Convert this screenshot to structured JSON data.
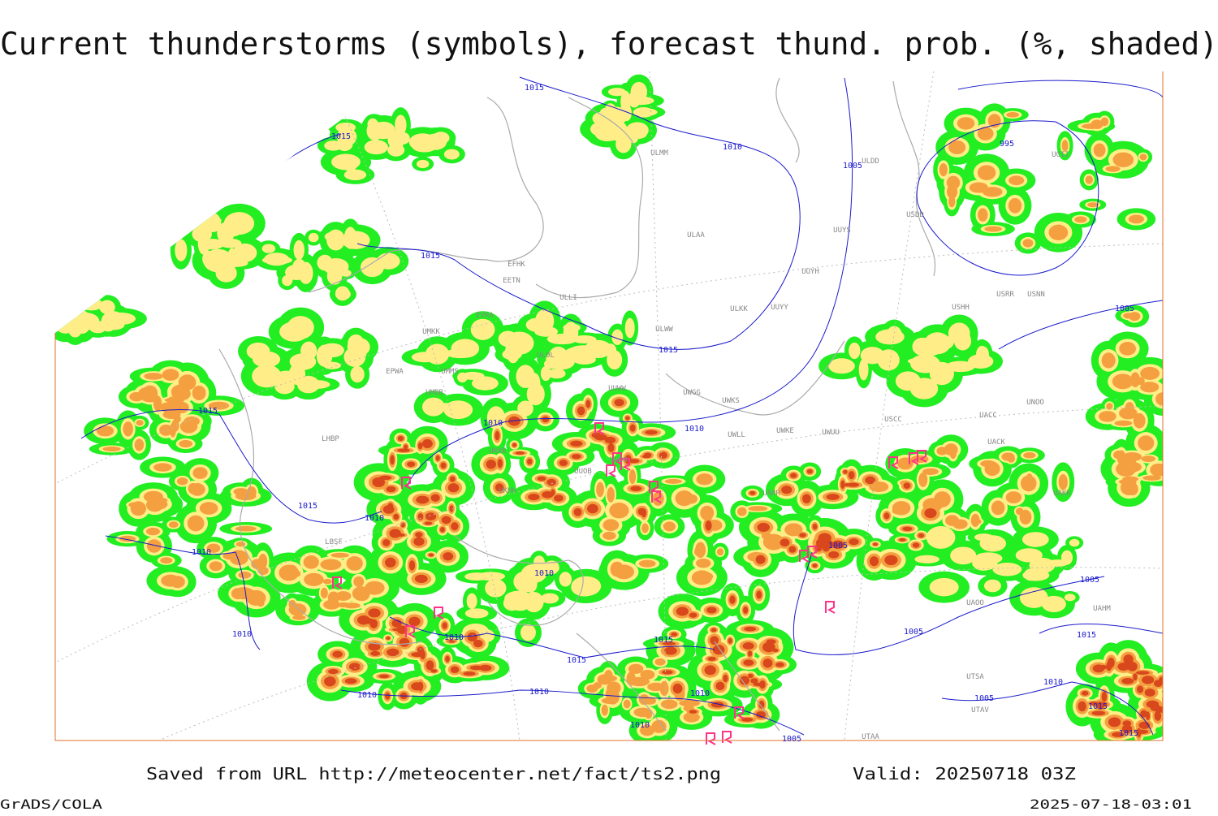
{
  "title": "Current thunderstorms (symbols), forecast thund. prob. (%, shaded)",
  "footer": {
    "source": "Saved from URL http://meteocenter.net/fact/ts2.png",
    "valid": "Valid: 20250718 03Z",
    "software": "GrADS/COLA",
    "timestamp": "2025-07-18-03:01"
  },
  "isobar_labels": [
    "1015",
    "1015",
    "1010",
    "1005",
    "995",
    "1015",
    "1005",
    "1015",
    "1010",
    "1010",
    "1015",
    "1015",
    "1010",
    "1010",
    "1010",
    "1005",
    "1005",
    "1010",
    "1010",
    "1015",
    "1015",
    "1005",
    "1015",
    "1010",
    "1010",
    "1010",
    "1010",
    "1005",
    "1015",
    "1010",
    "1005",
    "1015"
  ],
  "station_labels": [
    "ULMM",
    "ULDD",
    "ULAA",
    "UUYS",
    "USDD",
    "UOII",
    "EFHK",
    "EETN",
    "ULLI",
    "UUYH",
    "EVRA",
    "ULKK",
    "UUYY",
    "ULWW",
    "UMKK",
    "ULOL",
    "USHH",
    "USRR",
    "USNN",
    "UMMS",
    "UUWW",
    "UWGG",
    "UWKS",
    "UNOO",
    "EPWA",
    "UMBB",
    "UWKE",
    "UWUU",
    "USCC",
    "UACC",
    "UUOO",
    "UUOB",
    "UACK",
    "UKKK",
    "UWLL",
    "UARR",
    "UKHH",
    "UAKK",
    "LHBP",
    "LBSF",
    "UTSA",
    "UTAV",
    "UTAA",
    "UAOO",
    "UAHM"
  ]
}
